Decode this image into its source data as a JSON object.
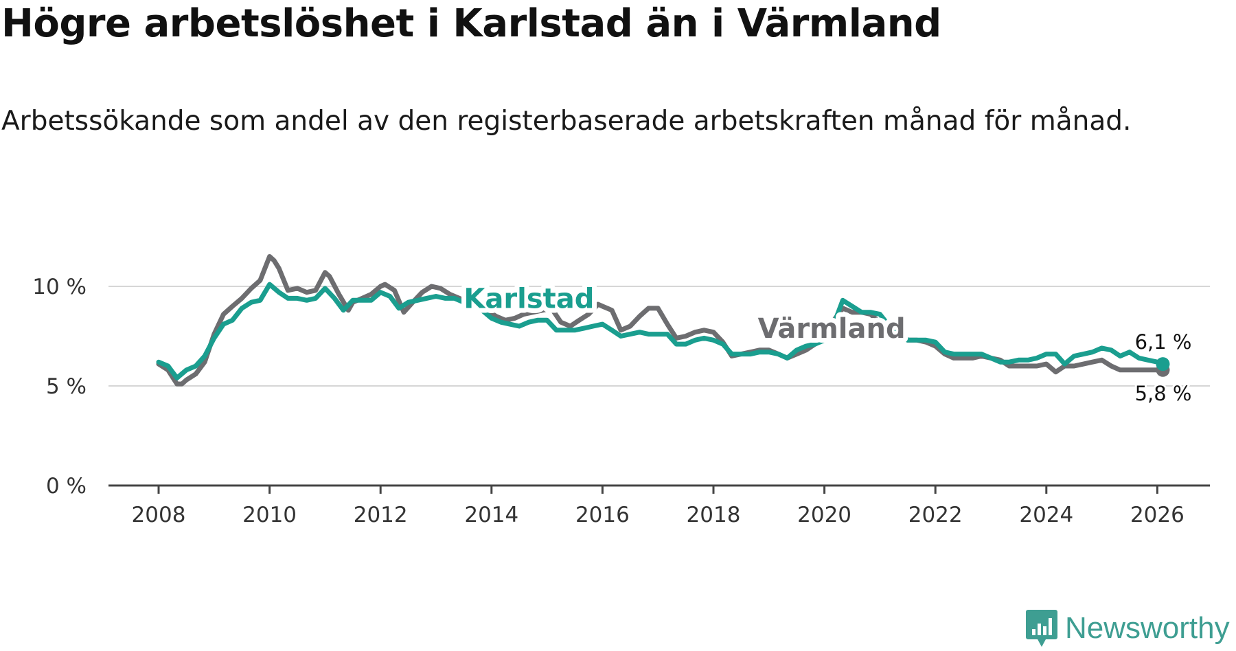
{
  "title": "Högre arbetslöshet i Karlstad än i Värmland",
  "subtitle": "Arbetssökande som andel av den registerbaserade arbetskraften månad för månad.",
  "logo": {
    "text": "Newsworthy",
    "icon": "newsworthy-logo-icon",
    "color": "#3e9e92"
  },
  "chart_data": {
    "type": "line",
    "title": "Högre arbetslöshet i Karlstad än i Värmland",
    "subtitle": "Arbetssökande som andel av den registerbaserade arbetskraften månad för månad.",
    "xlabel": "",
    "ylabel": "",
    "xlim": [
      2007.1,
      2027.0
    ],
    "ylim": [
      0,
      10
    ],
    "x_ticks": [
      2008,
      2010,
      2012,
      2014,
      2016,
      2018,
      2020,
      2022,
      2024,
      2026
    ],
    "y_ticks": [
      {
        "value": 0,
        "label": "0 %"
      },
      {
        "value": 5,
        "label": "5 %"
      },
      {
        "value": 10,
        "label": "10 %"
      }
    ],
    "grid": true,
    "series": [
      {
        "name": "Värmland",
        "color": "#6d6d70",
        "end_label": "5,8 %",
        "x": [
          2008.0,
          2008.17,
          2008.33,
          2008.42,
          2008.5,
          2008.67,
          2008.83,
          2009.0,
          2009.17,
          2009.33,
          2009.5,
          2009.67,
          2009.83,
          2010.0,
          2010.08,
          2010.17,
          2010.33,
          2010.5,
          2010.67,
          2010.83,
          2011.0,
          2011.08,
          2011.25,
          2011.42,
          2011.5,
          2011.67,
          2011.83,
          2012.0,
          2012.08,
          2012.25,
          2012.42,
          2012.58,
          2012.75,
          2012.92,
          2013.08,
          2013.25,
          2013.42,
          2013.58,
          2013.75,
          2013.92,
          2014.08,
          2014.25,
          2014.42,
          2014.58,
          2014.75,
          2014.92,
          2015.08,
          2015.25,
          2015.42,
          2015.58,
          2015.75,
          2015.92,
          2016.0,
          2016.17,
          2016.33,
          2016.5,
          2016.67,
          2016.83,
          2017.0,
          2017.17,
          2017.33,
          2017.5,
          2017.67,
          2017.83,
          2018.0,
          2018.17,
          2018.33,
          2018.5,
          2018.67,
          2018.83,
          2019.0,
          2019.17,
          2019.33,
          2019.5,
          2019.67,
          2019.83,
          2020.0,
          2020.17,
          2020.33,
          2020.5,
          2020.67,
          2020.83,
          2021.0,
          2021.17,
          2021.33,
          2021.5,
          2021.67,
          2021.83,
          2022.0,
          2022.17,
          2022.33,
          2022.5,
          2022.67,
          2022.83,
          2023.0,
          2023.17,
          2023.33,
          2023.5,
          2023.67,
          2023.83,
          2024.0,
          2024.17,
          2024.33,
          2024.5,
          2024.67,
          2024.83,
          2025.0,
          2025.17,
          2025.33,
          2025.5,
          2025.67,
          2025.83,
          2026.0,
          2026.1
        ],
        "values": [
          6.1,
          5.8,
          5.1,
          5.1,
          5.3,
          5.6,
          6.2,
          7.6,
          8.6,
          9.0,
          9.4,
          9.9,
          10.3,
          11.5,
          11.3,
          10.9,
          9.8,
          9.9,
          9.7,
          9.8,
          10.7,
          10.5,
          9.6,
          8.8,
          9.2,
          9.4,
          9.6,
          10.0,
          10.1,
          9.8,
          8.7,
          9.2,
          9.7,
          10.0,
          9.9,
          9.6,
          9.4,
          9.2,
          9.0,
          8.8,
          8.5,
          8.3,
          8.4,
          8.6,
          8.7,
          8.8,
          8.9,
          8.2,
          8.0,
          8.3,
          8.6,
          9.1,
          9.0,
          8.8,
          7.8,
          8.0,
          8.5,
          8.9,
          8.9,
          8.1,
          7.4,
          7.5,
          7.7,
          7.8,
          7.7,
          7.2,
          6.5,
          6.6,
          6.7,
          6.8,
          6.8,
          6.6,
          6.4,
          6.6,
          6.8,
          7.1,
          7.6,
          8.3,
          8.9,
          8.7,
          8.7,
          8.6,
          8.2,
          7.8,
          7.5,
          7.3,
          7.3,
          7.2,
          7.0,
          6.6,
          6.4,
          6.4,
          6.4,
          6.5,
          6.4,
          6.3,
          6.0,
          6.0,
          6.0,
          6.0,
          6.1,
          5.7,
          6.0,
          6.0,
          6.1,
          6.2,
          6.3,
          6.0,
          5.8,
          5.8,
          5.8,
          5.8,
          5.8,
          5.8
        ]
      },
      {
        "name": "Karlstad",
        "color": "#1a9e8f",
        "end_label": "6,1 %",
        "x": [
          2008.0,
          2008.17,
          2008.33,
          2008.5,
          2008.67,
          2008.83,
          2009.0,
          2009.17,
          2009.33,
          2009.5,
          2009.67,
          2009.83,
          2010.0,
          2010.17,
          2010.33,
          2010.5,
          2010.67,
          2010.83,
          2011.0,
          2011.17,
          2011.33,
          2011.5,
          2011.67,
          2011.83,
          2012.0,
          2012.17,
          2012.33,
          2012.5,
          2012.67,
          2012.83,
          2013.0,
          2013.17,
          2013.33,
          2013.5,
          2013.67,
          2013.83,
          2014.0,
          2014.17,
          2014.33,
          2014.5,
          2014.67,
          2014.83,
          2015.0,
          2015.17,
          2015.33,
          2015.5,
          2015.67,
          2015.83,
          2016.0,
          2016.17,
          2016.33,
          2016.5,
          2016.67,
          2016.83,
          2017.0,
          2017.17,
          2017.33,
          2017.5,
          2017.67,
          2017.83,
          2018.0,
          2018.17,
          2018.33,
          2018.5,
          2018.67,
          2018.83,
          2019.0,
          2019.17,
          2019.33,
          2019.5,
          2019.67,
          2019.83,
          2020.0,
          2020.17,
          2020.33,
          2020.5,
          2020.67,
          2020.83,
          2021.0,
          2021.17,
          2021.33,
          2021.5,
          2021.67,
          2021.83,
          2022.0,
          2022.17,
          2022.33,
          2022.5,
          2022.67,
          2022.83,
          2023.0,
          2023.17,
          2023.33,
          2023.5,
          2023.67,
          2023.83,
          2024.0,
          2024.17,
          2024.33,
          2024.5,
          2024.67,
          2024.83,
          2025.0,
          2025.17,
          2025.33,
          2025.5,
          2025.67,
          2025.83,
          2026.0,
          2026.1
        ],
        "values": [
          6.2,
          6.0,
          5.4,
          5.8,
          6.0,
          6.5,
          7.4,
          8.1,
          8.3,
          8.9,
          9.2,
          9.3,
          10.1,
          9.7,
          9.4,
          9.4,
          9.3,
          9.4,
          9.9,
          9.4,
          8.8,
          9.3,
          9.3,
          9.3,
          9.7,
          9.5,
          8.9,
          9.2,
          9.3,
          9.4,
          9.5,
          9.4,
          9.4,
          9.2,
          9.1,
          8.8,
          8.4,
          8.2,
          8.1,
          8.0,
          8.2,
          8.3,
          8.3,
          7.8,
          7.8,
          7.8,
          7.9,
          8.0,
          8.1,
          7.8,
          7.5,
          7.6,
          7.7,
          7.6,
          7.6,
          7.6,
          7.1,
          7.1,
          7.3,
          7.4,
          7.3,
          7.1,
          6.6,
          6.6,
          6.6,
          6.7,
          6.7,
          6.6,
          6.4,
          6.8,
          7.0,
          7.1,
          7.3,
          8.1,
          9.3,
          9.0,
          8.7,
          8.7,
          8.6,
          8.0,
          7.8,
          7.3,
          7.3,
          7.3,
          7.2,
          6.7,
          6.6,
          6.6,
          6.6,
          6.6,
          6.4,
          6.2,
          6.2,
          6.3,
          6.3,
          6.4,
          6.6,
          6.6,
          6.1,
          6.5,
          6.6,
          6.7,
          6.9,
          6.8,
          6.5,
          6.7,
          6.4,
          6.3,
          6.2,
          6.1
        ]
      }
    ],
    "labels": [
      {
        "series": "Karlstad",
        "text": "Karlstad",
        "x": 2013.5,
        "y": 9.4
      },
      {
        "series": "Värmland",
        "text": "Värmland",
        "x": 2018.8,
        "y": 7.9
      }
    ]
  }
}
